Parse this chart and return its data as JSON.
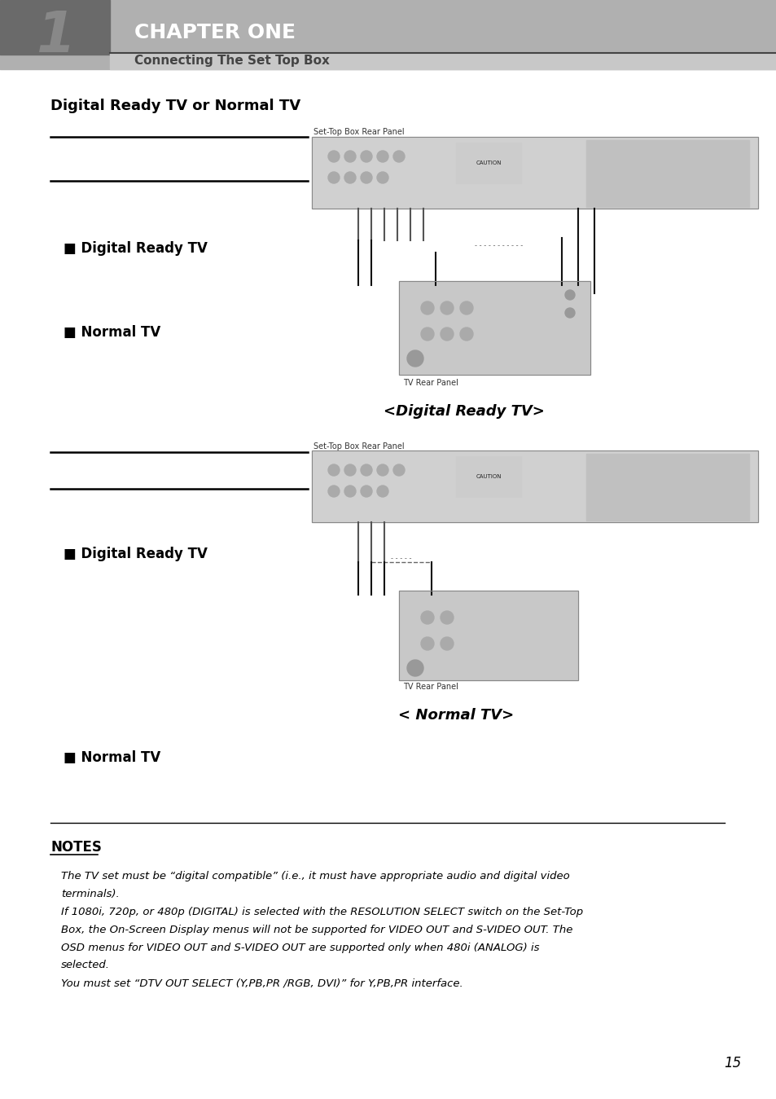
{
  "page_bg": "#ffffff",
  "header_bg": "#b0b0b0",
  "header_sub_bg": "#c8c8c8",
  "chapter_num": "1",
  "chapter_title": "CHAPTER ONE",
  "chapter_sub": "Connecting The Set Top Box",
  "section_title": "Digital Ready TV or Normal TV",
  "bullet": "■",
  "label1_digital": "Digital Ready TV",
  "label1_normal": "Normal TV",
  "label1_caption": "<Digital Ready TV>",
  "label2_digital": "Digital Ready TV",
  "label2_normal": "Normal TV",
  "label2_caption": "< Normal TV>",
  "diagram1_label_top": "Set-Top Box Rear Panel",
  "diagram1_label_bottom": "TV Rear Panel",
  "diagram2_label_top": "Set-Top Box Rear Panel",
  "diagram2_label_bottom": "TV Rear Panel",
  "notes_title": "NOTES",
  "notes_lines": [
    "The TV set must be “digital compatible” (i.e., it must have appropriate audio and digital video",
    "terminals).",
    "If 1080i, 720p, or 480p (DIGITAL) is selected with the RESOLUTION SELECT switch on the Set-Top",
    "Box, the On-Screen Display menus will not be supported for VIDEO OUT and S-VIDEO OUT. The",
    "OSD menus for VIDEO OUT and S-VIDEO OUT are supported only when 480i (ANALOG) is",
    "selected.",
    "You must set “DTV OUT SELECT (Y,PB,PR /RGB, DVI)” for Y,PB,PR interface."
  ],
  "page_num": "15",
  "line_color": "#000000",
  "header_line_color": "#555555",
  "text_color": "#000000",
  "notes_line_color": "#000000",
  "header_num_color": "#555555"
}
